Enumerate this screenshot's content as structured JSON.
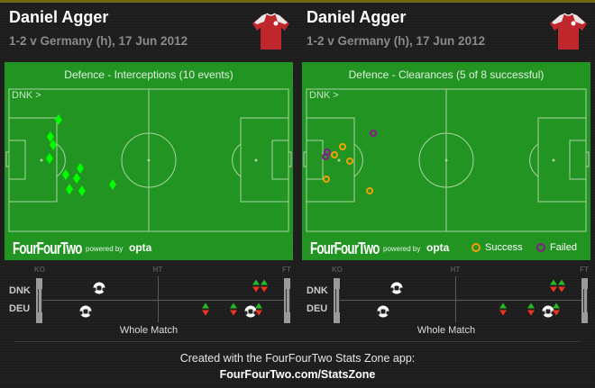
{
  "colors": {
    "pitch": "#229422",
    "interception": "#00ff00",
    "success": "#f0a000",
    "failed": "#8b1a8b",
    "sub_on": "#22bb22",
    "sub_off": "#ee3322"
  },
  "panels": [
    {
      "player": "Daniel Agger",
      "match": "1-2 v Germany (h), 17 Jun 2012",
      "title": "Defence - Interceptions (10 events)",
      "direction": "DNK >",
      "brand": "FourFourTwo",
      "powered_by": "powered by",
      "opta": "opta",
      "marker": "diamond",
      "events": [
        {
          "x": 17.7,
          "y": 21.5
        },
        {
          "x": 14.8,
          "y": 33.5
        },
        {
          "x": 15.8,
          "y": 39.2
        },
        {
          "x": 14.5,
          "y": 48.7
        },
        {
          "x": 20.3,
          "y": 60.1
        },
        {
          "x": 25.5,
          "y": 55.7
        },
        {
          "x": 24.2,
          "y": 62.7
        },
        {
          "x": 21.6,
          "y": 70.3
        },
        {
          "x": 26.1,
          "y": 71.5
        },
        {
          "x": 37.1,
          "y": 67.1
        }
      ]
    },
    {
      "player": "Daniel Agger",
      "match": "1-2 v Germany (h), 17 Jun 2012",
      "title": "Defence - Clearances (5 of 8 successful)",
      "direction": "DNK >",
      "brand": "FourFourTwo",
      "powered_by": "powered by",
      "opta": "opta",
      "marker": "ring",
      "legend": {
        "success": "Success",
        "failed": "Failed"
      },
      "events": [
        {
          "x": 12.9,
          "y": 40.5,
          "outcome": "success"
        },
        {
          "x": 10.0,
          "y": 46.2,
          "outcome": "success"
        },
        {
          "x": 15.5,
          "y": 50.6,
          "outcome": "success"
        },
        {
          "x": 7.1,
          "y": 63.3,
          "outcome": "success"
        },
        {
          "x": 22.6,
          "y": 71.5,
          "outcome": "success"
        },
        {
          "x": 23.9,
          "y": 31.0,
          "outcome": "failed"
        },
        {
          "x": 7.4,
          "y": 44.3,
          "outcome": "failed"
        },
        {
          "x": 6.8,
          "y": 47.5,
          "outcome": "failed"
        }
      ]
    }
  ],
  "timeline": {
    "ko": "KO",
    "ht": "HT",
    "ft": "FT",
    "home": "DNK",
    "away": "DEU",
    "period": "Whole Match",
    "events": [
      {
        "team": "DNK",
        "type": "goal",
        "minute": 22
      },
      {
        "team": "DNK",
        "type": "sub",
        "minute": 80
      },
      {
        "team": "DNK",
        "type": "sub",
        "minute": 83
      },
      {
        "team": "DEU",
        "type": "goal",
        "minute": 17
      },
      {
        "team": "DEU",
        "type": "sub",
        "minute": 62
      },
      {
        "team": "DEU",
        "type": "sub",
        "minute": 72
      },
      {
        "team": "DEU",
        "type": "goal",
        "minute": 78
      },
      {
        "team": "DEU",
        "type": "sub",
        "minute": 81
      }
    ]
  },
  "footer": {
    "line1": "Created with the FourFourTwo Stats Zone app:",
    "line2": "FourFourTwo.com/StatsZone"
  }
}
